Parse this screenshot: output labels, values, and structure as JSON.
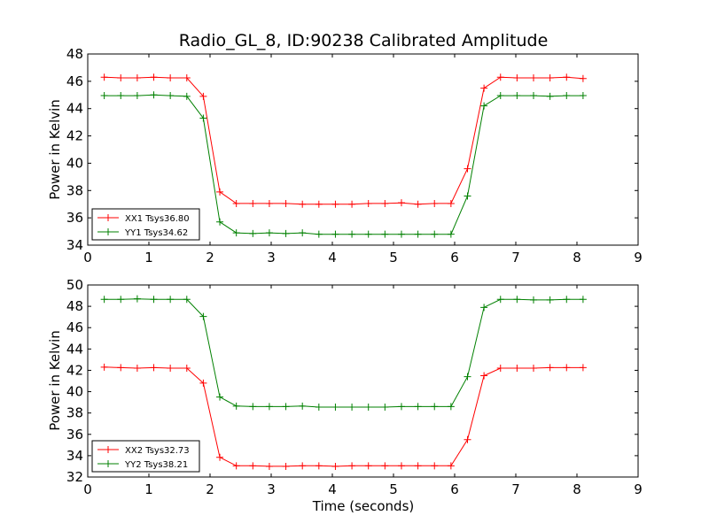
{
  "chart_data": [
    {
      "type": "line",
      "title": "Radio_GL_8, ID:90238 Calibrated Amplitude",
      "xlabel": "",
      "ylabel": "Power in Kelvin",
      "xlim": [
        0,
        9
      ],
      "ylim": [
        34,
        48
      ],
      "xticks": [
        "0",
        "1",
        "2",
        "3",
        "4",
        "5",
        "6",
        "7",
        "8",
        "9"
      ],
      "yticks": [
        "34",
        "36",
        "38",
        "40",
        "42",
        "44",
        "46",
        "48"
      ],
      "grid": false,
      "legend_position": "lower-left",
      "x": [
        0.27,
        0.54,
        0.81,
        1.08,
        1.35,
        1.62,
        1.89,
        2.16,
        2.43,
        2.7,
        2.97,
        3.24,
        3.51,
        3.78,
        4.05,
        4.32,
        4.59,
        4.86,
        5.13,
        5.4,
        5.67,
        5.94,
        6.21,
        6.48,
        6.75,
        7.02,
        7.29,
        7.56,
        7.83,
        8.1
      ],
      "series": [
        {
          "name": "XX1 Tsys36.80",
          "color": "#ff0000",
          "values": [
            46.3,
            46.25,
            46.25,
            46.3,
            46.25,
            46.25,
            44.9,
            37.9,
            37.05,
            37.05,
            37.05,
            37.05,
            37.0,
            37.0,
            37.0,
            37.0,
            37.05,
            37.05,
            37.1,
            37.0,
            37.05,
            37.05,
            39.6,
            45.5,
            46.3,
            46.25,
            46.25,
            46.25,
            46.3,
            46.2
          ]
        },
        {
          "name": "YY1 Tsys34.62",
          "color": "#008000",
          "values": [
            44.95,
            44.95,
            44.95,
            45.0,
            44.95,
            44.9,
            43.3,
            35.7,
            34.9,
            34.85,
            34.9,
            34.85,
            34.9,
            34.8,
            34.8,
            34.8,
            34.8,
            34.8,
            34.8,
            34.8,
            34.8,
            34.8,
            37.6,
            44.2,
            44.95,
            44.95,
            44.95,
            44.9,
            44.95,
            44.95
          ]
        }
      ]
    },
    {
      "type": "line",
      "title": "",
      "xlabel": "Time (seconds)",
      "ylabel": "Power in Kelvin",
      "xlim": [
        0,
        9
      ],
      "ylim": [
        32,
        50
      ],
      "xticks": [
        "0",
        "1",
        "2",
        "3",
        "4",
        "5",
        "6",
        "7",
        "8",
        "9"
      ],
      "yticks": [
        "32",
        "34",
        "36",
        "38",
        "40",
        "42",
        "44",
        "46",
        "48",
        "50"
      ],
      "grid": false,
      "legend_position": "lower-left",
      "x": [
        0.27,
        0.54,
        0.81,
        1.08,
        1.35,
        1.62,
        1.89,
        2.16,
        2.43,
        2.7,
        2.97,
        3.24,
        3.51,
        3.78,
        4.05,
        4.32,
        4.59,
        4.86,
        5.13,
        5.4,
        5.67,
        5.94,
        6.21,
        6.48,
        6.75,
        7.02,
        7.29,
        7.56,
        7.83,
        8.1
      ],
      "series": [
        {
          "name": "XX2 Tsys32.73",
          "color": "#ff0000",
          "values": [
            42.3,
            42.25,
            42.2,
            42.25,
            42.2,
            42.2,
            40.8,
            33.85,
            33.05,
            33.05,
            33.0,
            33.0,
            33.05,
            33.05,
            33.0,
            33.05,
            33.05,
            33.05,
            33.05,
            33.05,
            33.05,
            33.05,
            35.5,
            41.5,
            42.2,
            42.2,
            42.2,
            42.25,
            42.25,
            42.25
          ]
        },
        {
          "name": "YY2 Tsys38.21",
          "color": "#008000",
          "values": [
            48.65,
            48.65,
            48.7,
            48.65,
            48.65,
            48.65,
            47.05,
            39.5,
            38.65,
            38.6,
            38.6,
            38.6,
            38.65,
            38.55,
            38.55,
            38.55,
            38.55,
            38.55,
            38.6,
            38.6,
            38.6,
            38.6,
            41.4,
            47.9,
            48.65,
            48.65,
            48.6,
            48.6,
            48.65,
            48.65
          ]
        }
      ]
    }
  ]
}
